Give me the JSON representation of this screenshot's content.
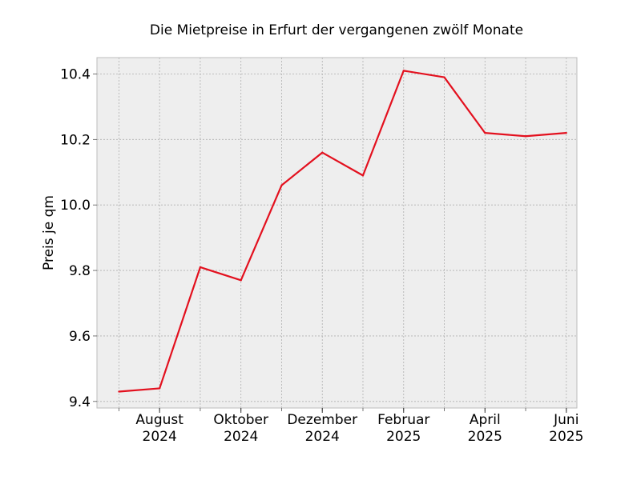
{
  "chart_data": {
    "type": "line",
    "title": "Die Mietpreise in Erfurt der vergangenen zwölf Monate",
    "xlabel": "",
    "ylabel": "Preis je qm",
    "ylim": [
      9.38,
      10.45
    ],
    "yticks": [
      "9.4",
      "9.6",
      "9.8",
      "10.0",
      "10.2",
      "10.4"
    ],
    "xticks": [
      {
        "month": 2,
        "lines": [
          "August",
          "2024"
        ]
      },
      {
        "month": 4,
        "lines": [
          "Oktober",
          "2024"
        ]
      },
      {
        "month": 6,
        "lines": [
          "Dezember",
          "2024"
        ]
      },
      {
        "month": 8,
        "lines": [
          "Februar",
          "2025"
        ]
      },
      {
        "month": 10,
        "lines": [
          "April",
          "2025"
        ]
      },
      {
        "month": 12,
        "lines": [
          "Juni",
          "2025"
        ]
      }
    ],
    "x": [
      "2024-07",
      "2024-08",
      "2024-09",
      "2024-10",
      "2024-11",
      "2024-12",
      "2025-01",
      "2025-02",
      "2025-03",
      "2025-04",
      "2025-05",
      "2025-06"
    ],
    "series": [
      {
        "values": [
          9.43,
          9.44,
          9.81,
          9.77,
          10.06,
          10.16,
          10.09,
          10.41,
          10.39,
          10.22,
          10.21,
          10.22
        ]
      }
    ],
    "grid": true,
    "colors": {
      "line": "#e3101e",
      "background": "#eeeeee",
      "grid": "#b0b0b0",
      "frame": "#bcbcbc"
    }
  }
}
